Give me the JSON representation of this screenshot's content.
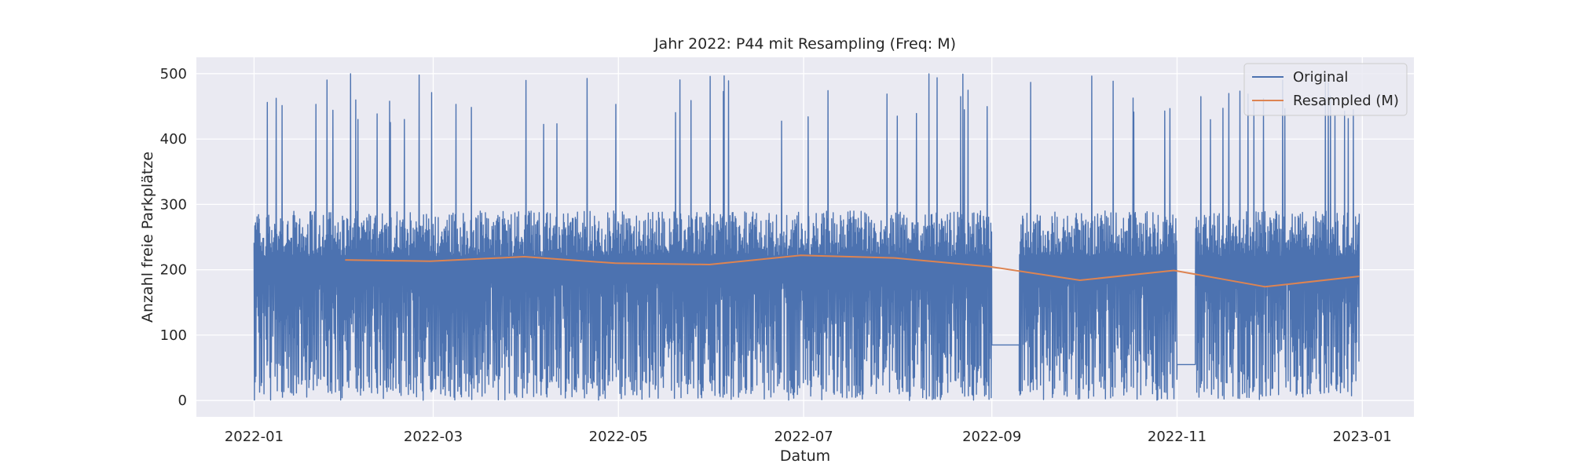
{
  "chart_data": {
    "type": "line",
    "title": "Jahr 2022: P44 mit Resampling (Freq: M)",
    "xlabel": "Datum",
    "ylabel": "Anzahl freie Parkplätze",
    "x_axis_type": "date",
    "xlim": [
      "2021-12-13",
      "2023-01-18"
    ],
    "ylim": [
      -25,
      525
    ],
    "x_ticks": [
      "2022-01-01",
      "2022-03-01",
      "2022-05-01",
      "2022-07-01",
      "2022-09-01",
      "2022-11-01",
      "2023-01-01"
    ],
    "x_tick_labels": [
      "2022-01",
      "2022-03",
      "2022-05",
      "2022-07",
      "2022-09",
      "2022-11",
      "2023-01"
    ],
    "y_ticks": [
      0,
      100,
      200,
      300,
      400,
      500
    ],
    "y_tick_labels": [
      "0",
      "100",
      "200",
      "300",
      "400",
      "500"
    ],
    "grid": true,
    "legend_position": "top-right",
    "colors": {
      "original": "#4c72b0",
      "resampled": "#dd8452",
      "plot_background": "#eaeaf2",
      "grid": "#ffffff"
    },
    "series": [
      {
        "name": "Original",
        "color": "#4c72b0",
        "sampling": "high-frequency noisy series, values oscillating roughly between 0 and 500 around a level of about 200-290",
        "gaps": [
          {
            "from": "2022-09-01",
            "to": "2022-09-10",
            "constant_value": 85
          },
          {
            "from": "2022-11-01",
            "to": "2022-11-07",
            "constant_value": 55
          }
        ]
      },
      {
        "name": "Resampled (M)",
        "color": "#dd8452",
        "x": [
          "2022-01-31",
          "2022-02-28",
          "2022-03-31",
          "2022-04-30",
          "2022-05-31",
          "2022-06-30",
          "2022-07-31",
          "2022-08-31",
          "2022-09-30",
          "2022-10-31",
          "2022-11-30",
          "2022-12-31"
        ],
        "values": [
          215,
          213,
          220,
          210,
          208,
          222,
          218,
          205,
          184,
          199,
          174,
          190
        ]
      }
    ]
  }
}
